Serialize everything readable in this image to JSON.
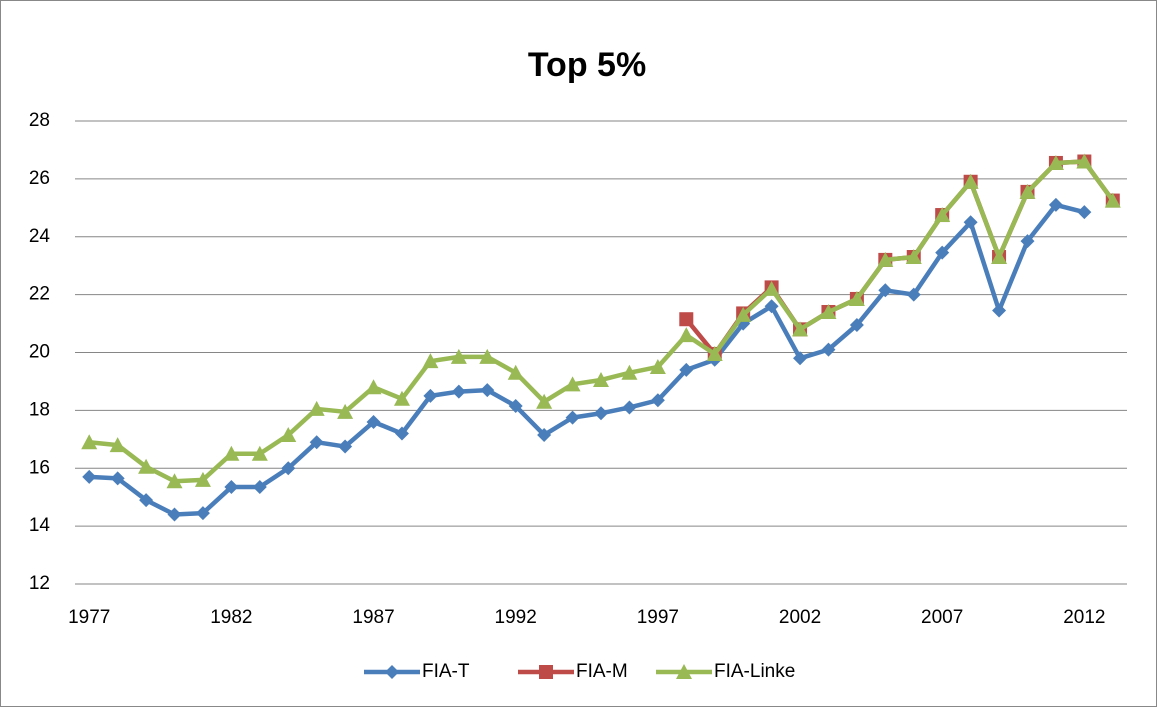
{
  "chart_data": {
    "type": "line",
    "title": "Top 5%",
    "x": [
      1977,
      1978,
      1979,
      1980,
      1981,
      1982,
      1983,
      1984,
      1985,
      1986,
      1987,
      1988,
      1989,
      1990,
      1991,
      1992,
      1993,
      1994,
      1995,
      1996,
      1997,
      1998,
      1999,
      2000,
      2001,
      2002,
      2003,
      2004,
      2005,
      2006,
      2007,
      2008,
      2009,
      2010,
      2011,
      2012,
      2013
    ],
    "xlim": [
      1976.5,
      2013.5
    ],
    "xticks": [
      1977,
      1982,
      1987,
      1992,
      1997,
      2002,
      2007,
      2012
    ],
    "ylim": [
      12,
      28
    ],
    "yticks": [
      12,
      14,
      16,
      18,
      20,
      22,
      24,
      26,
      28
    ],
    "grid": true,
    "legend": "bottom",
    "series": [
      {
        "name": "FIA-T",
        "color": "#4a7ebb",
        "marker": "diamond",
        "values": [
          15.7,
          15.65,
          14.9,
          14.4,
          14.45,
          15.35,
          15.35,
          16.0,
          16.9,
          16.75,
          17.6,
          17.2,
          18.5,
          18.65,
          18.7,
          18.15,
          17.15,
          17.75,
          17.9,
          18.1,
          18.35,
          19.4,
          19.75,
          21.0,
          21.6,
          19.8,
          20.1,
          20.95,
          22.15,
          22.0,
          23.45,
          24.5,
          21.45,
          23.85,
          25.1,
          24.85,
          null
        ]
      },
      {
        "name": "FIA-M",
        "color": "#be4b48",
        "marker": "square",
        "values": [
          null,
          null,
          null,
          null,
          null,
          null,
          null,
          null,
          null,
          null,
          null,
          null,
          null,
          null,
          null,
          null,
          null,
          null,
          null,
          null,
          null,
          21.15,
          19.95,
          21.35,
          22.25,
          20.8,
          21.4,
          21.85,
          23.2,
          23.3,
          24.75,
          25.9,
          23.3,
          25.55,
          26.55,
          26.6,
          25.25
        ]
      },
      {
        "name": "FIA-Linke",
        "color": "#98b954",
        "marker": "triangle",
        "values": [
          16.9,
          16.8,
          16.05,
          15.55,
          15.6,
          16.5,
          16.5,
          17.15,
          18.05,
          17.95,
          18.8,
          18.4,
          19.7,
          19.85,
          19.85,
          19.3,
          18.3,
          18.9,
          19.05,
          19.3,
          19.5,
          20.6,
          19.95,
          21.3,
          22.2,
          20.8,
          21.4,
          21.85,
          23.2,
          23.3,
          24.75,
          25.9,
          23.3,
          25.55,
          26.55,
          26.6,
          25.25
        ]
      }
    ]
  }
}
